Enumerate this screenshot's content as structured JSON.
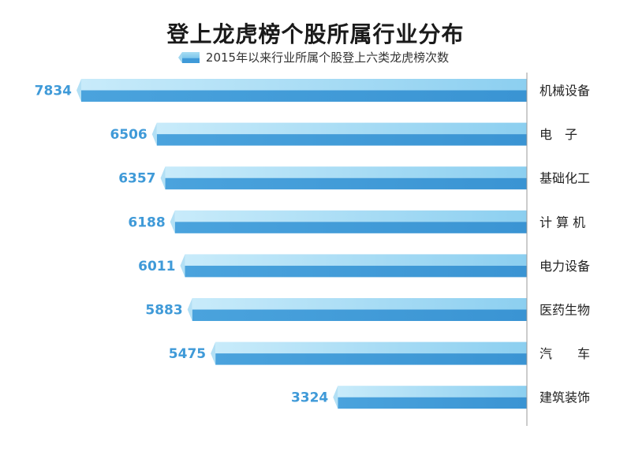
{
  "chart_data": {
    "type": "bar",
    "orientation": "horizontal",
    "title": "登上龙虎榜个股所属行业分布",
    "legend": "2015年以来行业所属个股登上六类龙虎榜次数",
    "categories": [
      "机械设备",
      "电　子",
      "基础化工",
      "计 算 机",
      "电力设备",
      "医药生物",
      "汽　　车",
      "建筑装饰"
    ],
    "values": [
      7834,
      6506,
      6357,
      6188,
      6011,
      5883,
      5475,
      3324
    ],
    "xlim": [
      0,
      7834
    ],
    "grid": false,
    "legend_placement": "top-center"
  },
  "colors": {
    "bar_top": "#a9ddf3",
    "bar_bottom": "#3f9ad8",
    "value_text": "#3f9ad8",
    "axis_line": "#9a9a9a"
  }
}
